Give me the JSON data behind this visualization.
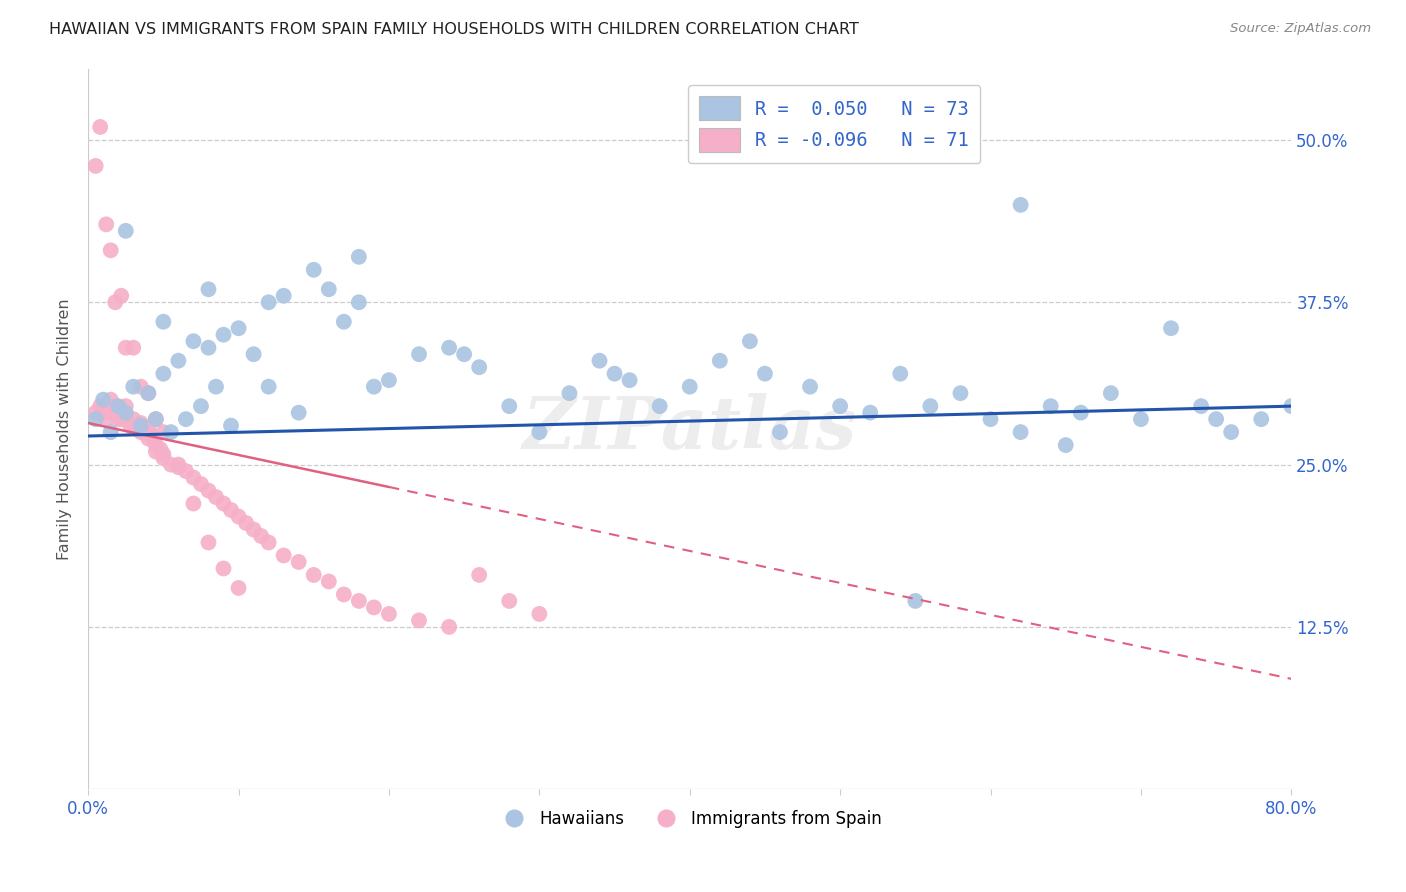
{
  "title": "HAWAIIAN VS IMMIGRANTS FROM SPAIN FAMILY HOUSEHOLDS WITH CHILDREN CORRELATION CHART",
  "source": "Source: ZipAtlas.com",
  "ylabel": "Family Households with Children",
  "ytick_labels": [
    "12.5%",
    "25.0%",
    "37.5%",
    "50.0%"
  ],
  "ytick_values": [
    0.125,
    0.25,
    0.375,
    0.5
  ],
  "xlim": [
    0.0,
    0.8
  ],
  "ylim": [
    0.0,
    0.555
  ],
  "legend_blue_r": "R =  0.050",
  "legend_blue_n": "N = 73",
  "legend_pink_r": "R = -0.096",
  "legend_pink_n": "N = 71",
  "legend_label_blue": "Hawaiians",
  "legend_label_pink": "Immigrants from Spain",
  "blue_color": "#aac4e2",
  "pink_color": "#f5afc8",
  "blue_line_color": "#2255aa",
  "pink_line_color": "#e06080",
  "blue_line_start_y": 0.272,
  "blue_line_end_y": 0.295,
  "pink_line_start_y": 0.282,
  "pink_line_end_y": 0.085,
  "hawaiians_x": [
    0.005,
    0.01,
    0.015,
    0.02,
    0.025,
    0.03,
    0.035,
    0.04,
    0.045,
    0.05,
    0.055,
    0.06,
    0.065,
    0.07,
    0.075,
    0.08,
    0.085,
    0.09,
    0.095,
    0.1,
    0.11,
    0.12,
    0.13,
    0.14,
    0.15,
    0.16,
    0.17,
    0.18,
    0.19,
    0.2,
    0.22,
    0.24,
    0.26,
    0.28,
    0.3,
    0.32,
    0.34,
    0.36,
    0.38,
    0.4,
    0.42,
    0.44,
    0.46,
    0.48,
    0.5,
    0.52,
    0.54,
    0.56,
    0.58,
    0.6,
    0.62,
    0.64,
    0.66,
    0.68,
    0.7,
    0.72,
    0.74,
    0.76,
    0.78,
    0.8,
    0.025,
    0.05,
    0.08,
    0.12,
    0.18,
    0.25,
    0.35,
    0.45,
    0.55,
    0.65,
    0.75,
    0.48,
    0.62
  ],
  "hawaiians_y": [
    0.285,
    0.3,
    0.275,
    0.295,
    0.29,
    0.31,
    0.28,
    0.305,
    0.285,
    0.32,
    0.275,
    0.33,
    0.285,
    0.345,
    0.295,
    0.34,
    0.31,
    0.35,
    0.28,
    0.355,
    0.335,
    0.31,
    0.38,
    0.29,
    0.4,
    0.385,
    0.36,
    0.375,
    0.31,
    0.315,
    0.335,
    0.34,
    0.325,
    0.295,
    0.275,
    0.305,
    0.33,
    0.315,
    0.295,
    0.31,
    0.33,
    0.345,
    0.275,
    0.31,
    0.295,
    0.29,
    0.32,
    0.295,
    0.305,
    0.285,
    0.275,
    0.295,
    0.29,
    0.305,
    0.285,
    0.355,
    0.295,
    0.275,
    0.285,
    0.295,
    0.43,
    0.36,
    0.385,
    0.375,
    0.41,
    0.335,
    0.32,
    0.32,
    0.145,
    0.265,
    0.285,
    0.505,
    0.45
  ],
  "spain_x": [
    0.005,
    0.008,
    0.01,
    0.012,
    0.015,
    0.015,
    0.018,
    0.02,
    0.02,
    0.022,
    0.025,
    0.025,
    0.028,
    0.03,
    0.03,
    0.032,
    0.035,
    0.035,
    0.038,
    0.04,
    0.04,
    0.042,
    0.045,
    0.045,
    0.048,
    0.05,
    0.05,
    0.055,
    0.06,
    0.065,
    0.07,
    0.075,
    0.08,
    0.085,
    0.09,
    0.095,
    0.1,
    0.105,
    0.11,
    0.115,
    0.12,
    0.13,
    0.14,
    0.15,
    0.16,
    0.17,
    0.18,
    0.19,
    0.2,
    0.22,
    0.24,
    0.26,
    0.28,
    0.3,
    0.005,
    0.008,
    0.012,
    0.015,
    0.018,
    0.022,
    0.025,
    0.03,
    0.035,
    0.04,
    0.045,
    0.05,
    0.06,
    0.07,
    0.08,
    0.09,
    0.1
  ],
  "spain_y": [
    0.29,
    0.295,
    0.29,
    0.285,
    0.3,
    0.29,
    0.295,
    0.29,
    0.285,
    0.285,
    0.295,
    0.285,
    0.28,
    0.285,
    0.278,
    0.28,
    0.282,
    0.275,
    0.275,
    0.278,
    0.27,
    0.272,
    0.265,
    0.26,
    0.262,
    0.255,
    0.258,
    0.25,
    0.248,
    0.245,
    0.24,
    0.235,
    0.23,
    0.225,
    0.22,
    0.215,
    0.21,
    0.205,
    0.2,
    0.195,
    0.19,
    0.18,
    0.175,
    0.165,
    0.16,
    0.15,
    0.145,
    0.14,
    0.135,
    0.13,
    0.125,
    0.165,
    0.145,
    0.135,
    0.48,
    0.51,
    0.435,
    0.415,
    0.375,
    0.38,
    0.34,
    0.34,
    0.31,
    0.305,
    0.285,
    0.275,
    0.25,
    0.22,
    0.19,
    0.17,
    0.155
  ]
}
